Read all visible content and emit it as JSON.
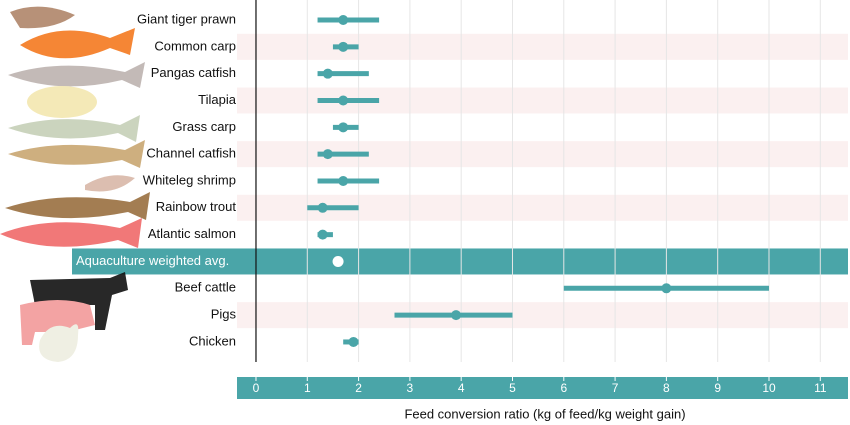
{
  "chart_data": {
    "type": "range_dot",
    "categories": [
      "Giant tiger prawn",
      "Common carp",
      "Pangas catfish",
      "Tilapia",
      "Grass carp",
      "Channel catfish",
      "Whiteleg shrimp",
      "Rainbow trout",
      "Atlantic salmon",
      "Aquaculture weighted avg.",
      "Beef cattle",
      "Pigs",
      "Chicken"
    ],
    "values": [
      1.7,
      1.7,
      1.4,
      1.7,
      1.7,
      1.4,
      1.7,
      1.3,
      1.3,
      1.6,
      8.0,
      3.9,
      1.9
    ],
    "low": [
      1.2,
      1.5,
      1.2,
      1.2,
      1.5,
      1.2,
      1.2,
      1.0,
      1.2,
      null,
      6.0,
      2.7,
      1.7
    ],
    "high": [
      2.4,
      2.0,
      2.2,
      2.4,
      2.0,
      2.2,
      2.4,
      2.0,
      1.5,
      null,
      10.0,
      5.0,
      2.0
    ],
    "color": "#4aa5a8",
    "xlim": [
      -0.37,
      11.54
    ],
    "xticks": [
      0,
      1,
      2,
      3,
      4,
      5,
      6,
      7,
      8,
      9,
      10,
      11
    ],
    "xlabel": "Feed conversion ratio (kg of feed/kg weight gain)",
    "grid": true
  }
}
